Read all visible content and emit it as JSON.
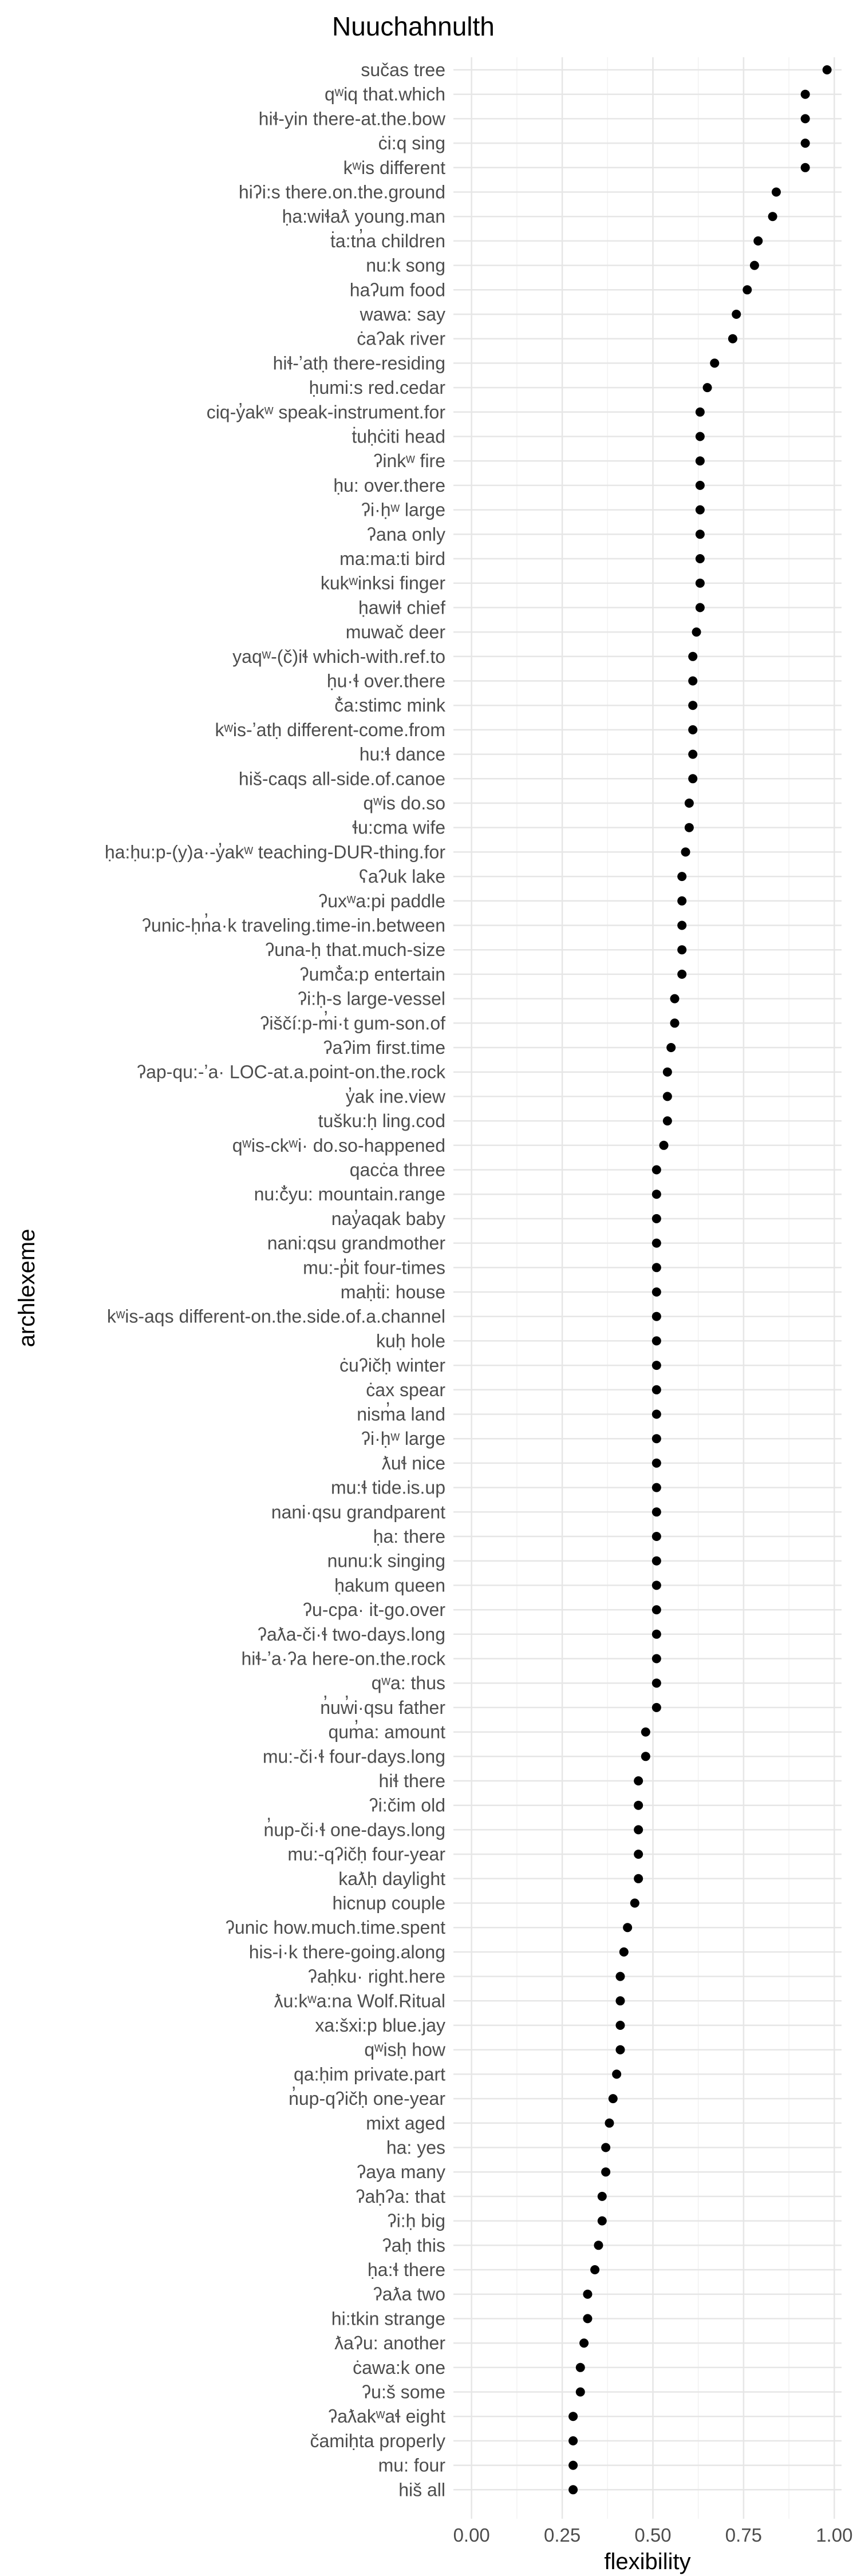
{
  "chart_data": {
    "type": "scatter",
    "title": "Nuuchahnulth",
    "xlabel": "flexibility",
    "ylabel": "archlexeme",
    "xlim": [
      -0.05,
      1.02
    ],
    "x_ticks": [
      "0.00",
      "0.25",
      "0.50",
      "0.75",
      "1.00"
    ],
    "grid": true,
    "legend": "none",
    "point_color": "#000000",
    "categories": [
      "sučas   tree",
      "qʷiq   that.which",
      "hiɬ-yin   there-at.the.bow",
      "ċi:q   sing",
      "kʷis   different",
      "hiʔi:s   there.on.the.ground",
      "ḥa:wiɬaƛ   young.man",
      "ṫa:tn̓a   children",
      "nu:k   song",
      "haʔum   food",
      "wawa:   say",
      "ċaʔak   river",
      "hiɬ-ʼatḥ   there-residing",
      "ḥumi:s   red.cedar",
      "ciq-y̓akʷ   speak-instrument.for",
      "ṫuḥċiti   head",
      "ʔinkʷ   fire",
      "ḥu:   over.there",
      "ʔi·ḥʷ   large",
      "ʔana   only",
      "ma:ma:ti   bird",
      "kukʷinksi   finger",
      "ḥawiɬ   chief",
      "muwač   deer",
      "yaqʷ-(č)iɬ   which-with.ref.to",
      "ḥu·ɬ   over.there",
      "č̓a:stimc   mink",
      "kʷis-ʼatḥ   different-come.from",
      "hu:ɬ   dance",
      "hiš-caqs   all-side.of.canoe",
      "qʷis   do.so",
      "ɬu:cma   wife",
      "ḥa:ḥu:p-(y)a·-y̓akʷ   teaching-DUR-thing.for",
      "ʕaʔuk   lake",
      "ʔuxʷa:pi   paddle",
      "ʔunic-ḥn̓a·k   traveling.time-in.between",
      "ʔuna-ḥ   that.much-size",
      "ʔumč̓a:p   entertain",
      "ʔi:ḥ-s   large-vessel",
      "ʔiščí:p-m̓i·t   gum-son.of",
      "ʔaʔim   first.time",
      "ʔap-qu:-ʼa·   LOC-at.a.point-on.the.rock",
      "y̓ak   ine.view",
      "tušku:ḥ   ling.cod",
      "qʷis-ckʷi·   do.so-happened",
      "qacċa   three",
      "nu:č̓yu:   mountain.range",
      "nay̓aqak   baby",
      "nani:qsu   grandmother",
      "mu:-p̓it   four-times",
      "maḥṫi:   house",
      "kʷis-aqs   different-on.the.side.of.a.channel",
      "kuḥ   hole",
      "ċuʔičḥ   winter",
      "ċax   spear",
      "nism̓a   land",
      "ʔi·ḥʷ   large",
      "ƛuɬ   nice",
      "mu:ɬ   tide.is.up",
      "nani·qsu   grandparent",
      "ḥa:   there",
      "nunu:k   singing",
      "ḥakum   queen",
      "ʔu-cpa·   it-go.over",
      "ʔaƛa-či·ɬ   two-days.long",
      "hiɬ-ʼa·ʔa   here-on.the.rock",
      "qʷa:   thus",
      "n̓uw̓i·qsu   father",
      "qum̓a:   amount",
      "mu:-či·ɬ   four-days.long",
      "hiɬ   there",
      "ʔi:čim   old",
      "n̓up-či·ɬ   one-days.long",
      "mu:-qʔičḥ   four-year",
      "kaƛḥ   daylight",
      "hicnup   couple",
      "ʔunic   how.much.time.spent",
      "his-i·k   there-going.along",
      "ʔaḥku·   right.here",
      "ƛu:kʷa:na   Wolf.Ritual",
      "xa:šxi:p   blue.jay",
      "qʷisḥ   how",
      "qa:ḥim   private.part",
      "n̓up-qʔičḥ   one-year",
      "mixt   aged",
      "ha:   yes",
      "ʔaya   many",
      "ʔaḥʔa:   that",
      "ʔi:ḥ   big",
      "ʔaḥ   this",
      "ḥa:ɬ   there",
      "ʔaƛa   two",
      "hi:tkin   strange",
      "ƛaʔu:   another",
      "ċawa:k   one",
      "ʔu:š   some",
      "ʔaƛakʷaɬ   eight",
      "čamiḥta   properly",
      "mu:   four",
      "hiš   all"
    ],
    "values": [
      0.98,
      0.92,
      0.92,
      0.92,
      0.92,
      0.84,
      0.83,
      0.79,
      0.78,
      0.76,
      0.73,
      0.72,
      0.67,
      0.65,
      0.63,
      0.63,
      0.63,
      0.63,
      0.63,
      0.63,
      0.63,
      0.63,
      0.63,
      0.62,
      0.61,
      0.61,
      0.61,
      0.61,
      0.61,
      0.61,
      0.6,
      0.6,
      0.59,
      0.58,
      0.58,
      0.58,
      0.58,
      0.58,
      0.56,
      0.56,
      0.55,
      0.54,
      0.54,
      0.54,
      0.53,
      0.51,
      0.51,
      0.51,
      0.51,
      0.51,
      0.51,
      0.51,
      0.51,
      0.51,
      0.51,
      0.51,
      0.51,
      0.51,
      0.51,
      0.51,
      0.51,
      0.51,
      0.51,
      0.51,
      0.51,
      0.51,
      0.51,
      0.51,
      0.48,
      0.48,
      0.46,
      0.46,
      0.46,
      0.46,
      0.46,
      0.45,
      0.43,
      0.42,
      0.41,
      0.41,
      0.41,
      0.41,
      0.4,
      0.39,
      0.38,
      0.37,
      0.37,
      0.36,
      0.36,
      0.35,
      0.34,
      0.32,
      0.32,
      0.31,
      0.3,
      0.3,
      0.28,
      0.28,
      0.28,
      0.28
    ]
  }
}
